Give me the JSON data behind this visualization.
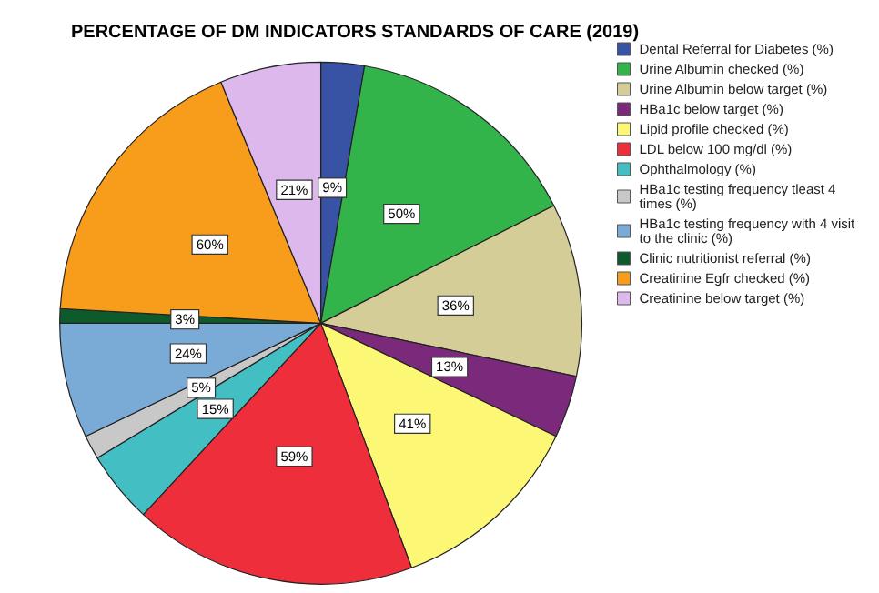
{
  "chart_data": {
    "type": "pie",
    "title": "PERCENTAGE OF DM INDICATORS STANDARDS OF CARE (2019)",
    "categories": [
      "Dental Referral for Diabetes (%)",
      "Urine Albumin checked (%)",
      "Urine Albumin below target (%)",
      "HBa1c below target (%)",
      "Lipid profile checked (%)",
      "LDL below 100 mg/dl (%)",
      "Ophthalmology (%)",
      "HBa1c testing frequency tleast 4 times (%)",
      "HBa1c testing frequency with 4 visit to the clinic (%)",
      "Clinic nutritionist referral (%)",
      "Creatinine Egfr checked (%)",
      "Creatinine below target (%)"
    ],
    "values": [
      9,
      50,
      36,
      13,
      41,
      59,
      15,
      5,
      24,
      3,
      60,
      21
    ],
    "value_labels": [
      "9%",
      "50%",
      "36%",
      "13%",
      "41%",
      "59%",
      "15%",
      "5%",
      "24%",
      "3%",
      "60%",
      "21%"
    ],
    "colors": [
      "#3953a4",
      "#33b44a",
      "#d4cd98",
      "#7b2a7b",
      "#fcf774",
      "#ee2e3a",
      "#43bfc4",
      "#c8c8c8",
      "#7aaad6",
      "#0d5a2c",
      "#f89c1c",
      "#dcb8ec"
    ],
    "legend": "top right"
  }
}
